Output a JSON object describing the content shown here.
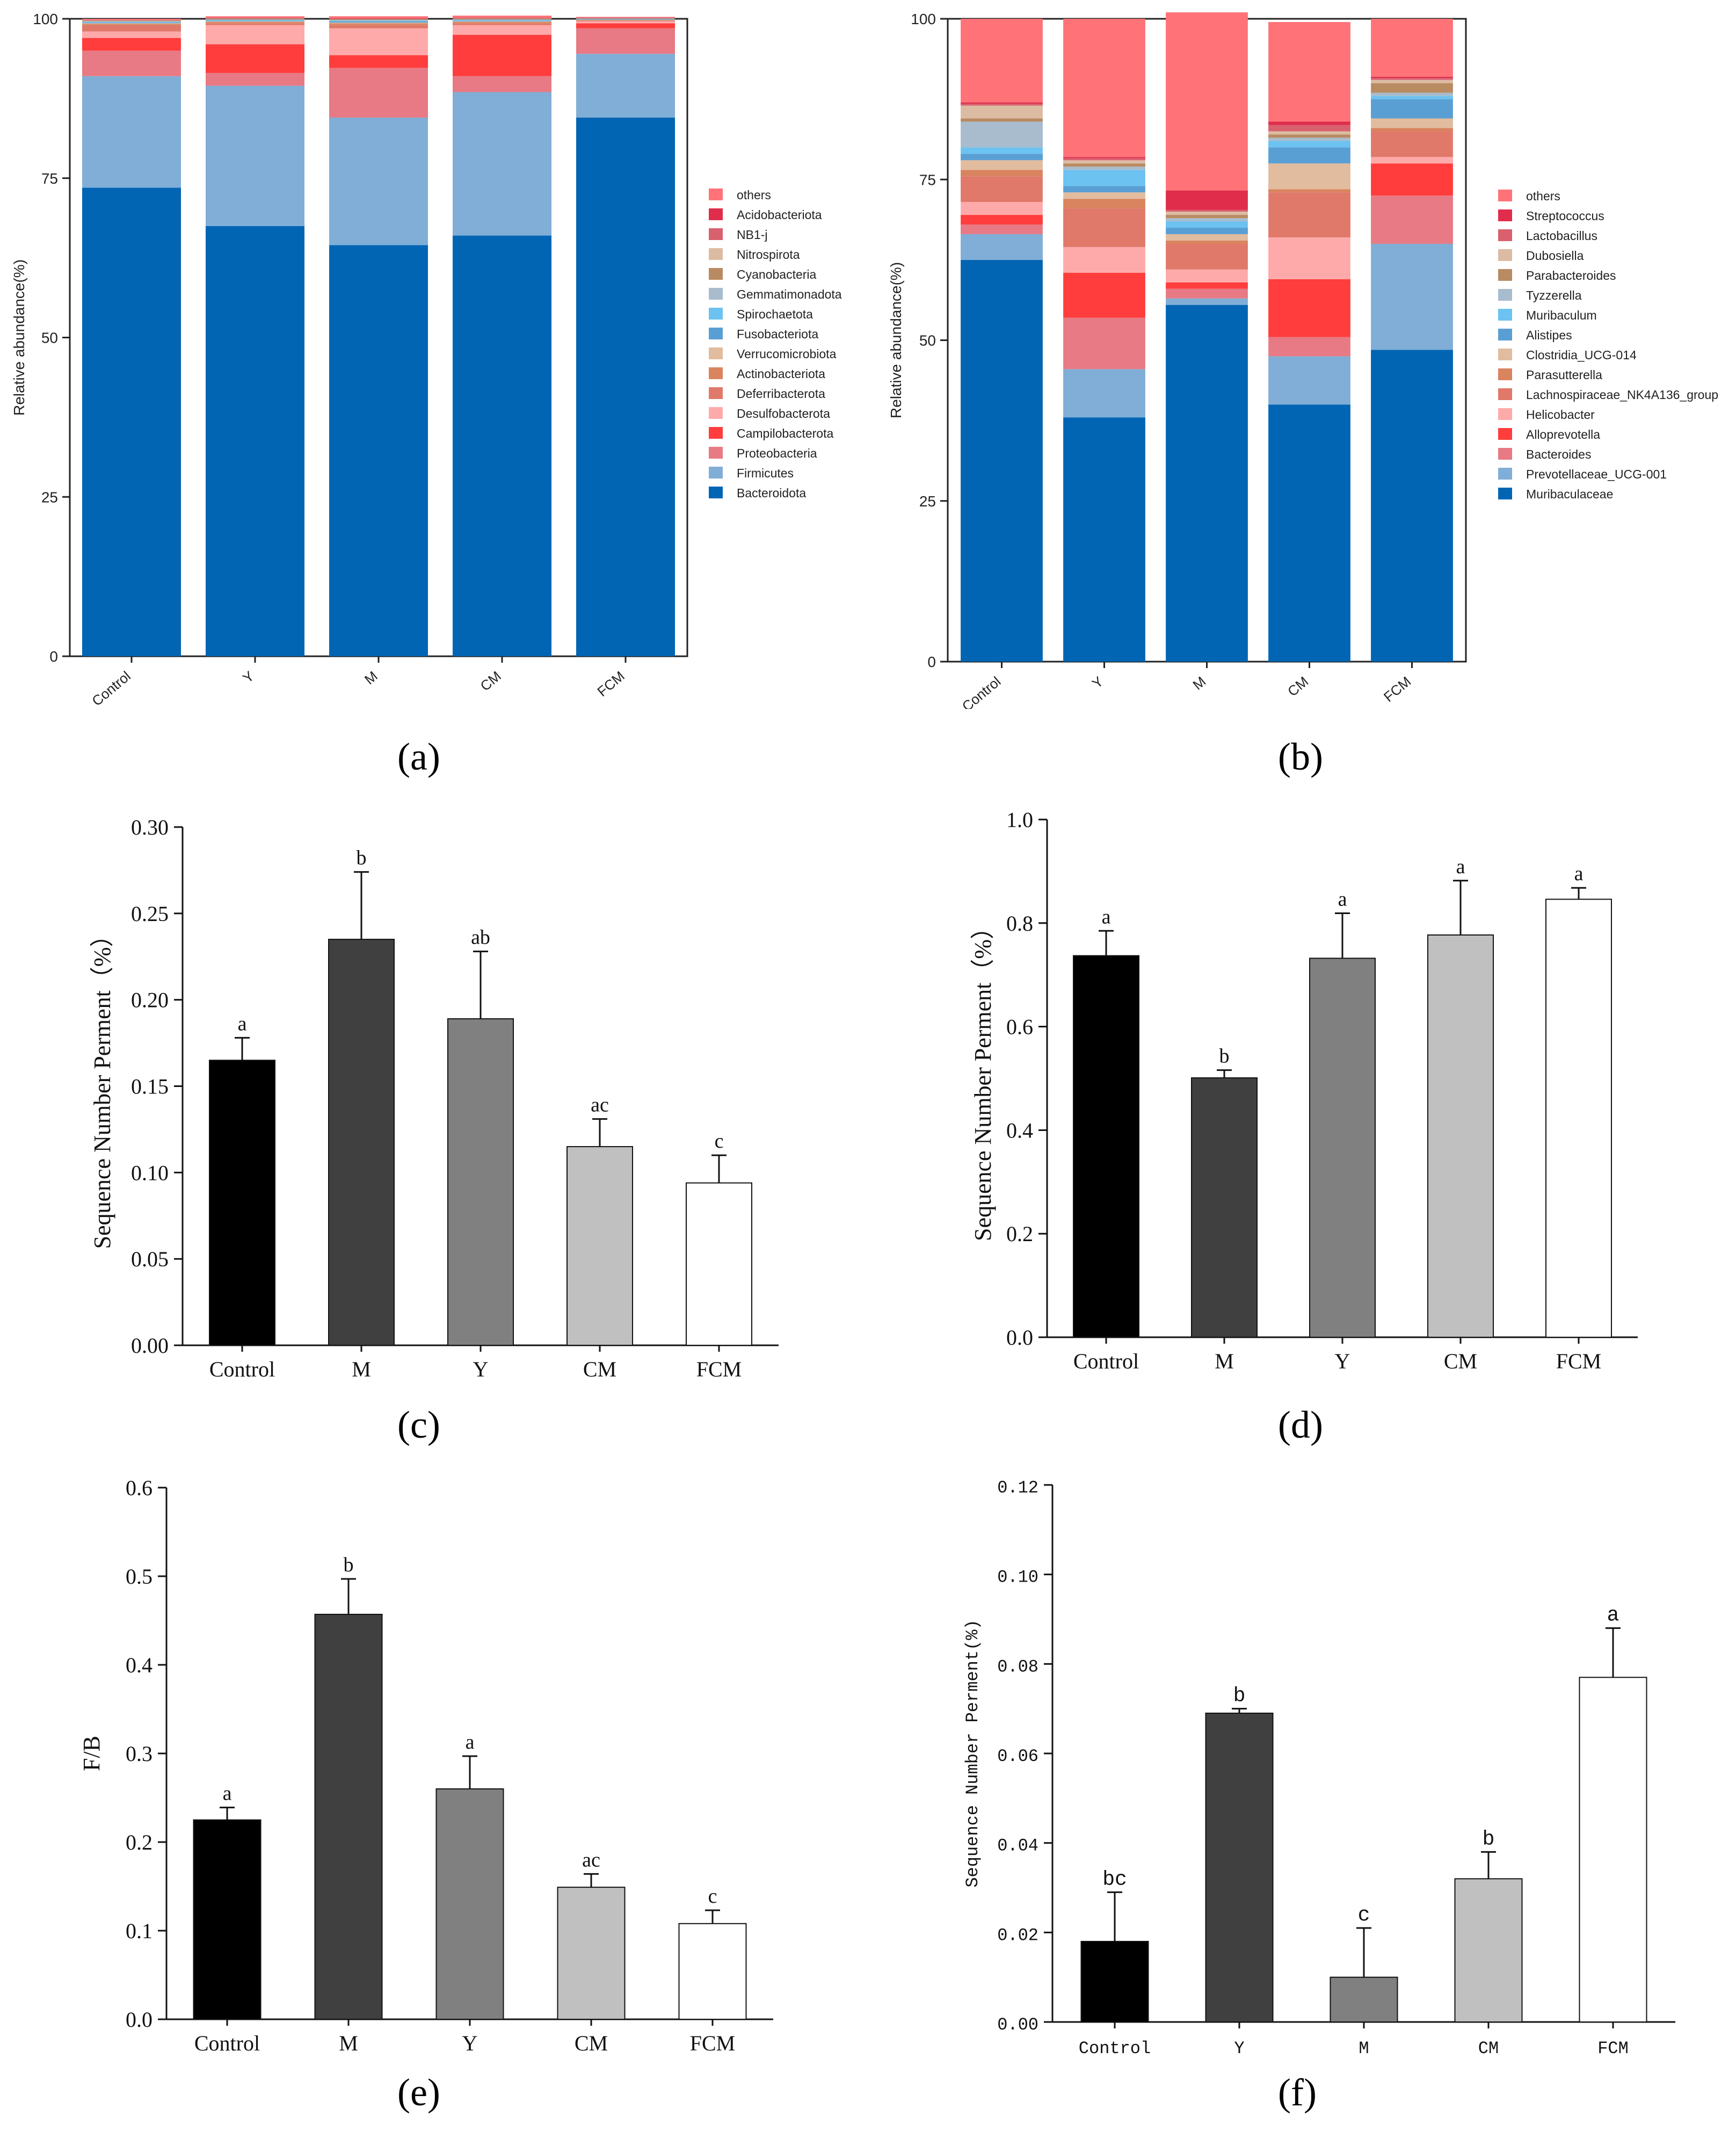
{
  "figure": {
    "panel_labels": [
      "(a)",
      "(b)",
      "(c)",
      "(d)",
      "(e)",
      "(f)"
    ]
  },
  "chart_data": [
    {
      "id": "a",
      "type": "stacked-bar",
      "ylabel": "Relative abundance(%)",
      "ylim": [
        0,
        100
      ],
      "yticks": [
        0,
        25,
        50,
        75,
        100
      ],
      "categories": [
        "Control",
        "Y",
        "M",
        "CM",
        "FCM"
      ],
      "legend_position": "right",
      "series": [
        {
          "name": "Bacteroidota",
          "color": "#0265b4",
          "values": [
            73.5,
            67.5,
            64.5,
            66.0,
            84.5
          ]
        },
        {
          "name": "Firmicutes",
          "color": "#80aed6",
          "values": [
            17.5,
            22.0,
            20.0,
            22.5,
            10.0
          ]
        },
        {
          "name": "Proteobacteria",
          "color": "#e77a84",
          "values": [
            4.0,
            2.0,
            7.8,
            2.5,
            4.0
          ]
        },
        {
          "name": "Campilobacterota",
          "color": "#ff3d3d",
          "values": [
            2.0,
            4.5,
            2.0,
            6.5,
            0.8
          ]
        },
        {
          "name": "Desulfobacterota",
          "color": "#ffaaaa",
          "values": [
            1.0,
            3.0,
            4.2,
            1.5,
            0.3
          ]
        },
        {
          "name": "Deferribacterota",
          "color": "#e0796a",
          "values": [
            1.0,
            0.3,
            0.5,
            0.3,
            0.1
          ]
        },
        {
          "name": "Actinobacteriota",
          "color": "#d9845f",
          "values": [
            0.2,
            0.2,
            0.3,
            0.2,
            0.1
          ]
        },
        {
          "name": "Verrucomicrobiota",
          "color": "#e2bc9e",
          "values": [
            0.1,
            0.1,
            0.1,
            0.1,
            0.05
          ]
        },
        {
          "name": "Fusobacteriota",
          "color": "#5a9fd4",
          "values": [
            0.1,
            0.1,
            0.2,
            0.1,
            0.05
          ]
        },
        {
          "name": "Spirochaetota",
          "color": "#6cc2f0",
          "values": [
            0.1,
            0.1,
            0.1,
            0.1,
            0.05
          ]
        },
        {
          "name": "Gemmatimonadota",
          "color": "#a8bccd",
          "values": [
            0.1,
            0.1,
            0.1,
            0.1,
            0.05
          ]
        },
        {
          "name": "Cyanobacteria",
          "color": "#b98b62",
          "values": [
            0.1,
            0.1,
            0.1,
            0.1,
            0.05
          ]
        },
        {
          "name": "Nitrospirota",
          "color": "#dcbba3",
          "values": [
            0.05,
            0.05,
            0.05,
            0.05,
            0.05
          ]
        },
        {
          "name": "NB1-j",
          "color": "#d9606e",
          "values": [
            0.05,
            0.05,
            0.05,
            0.05,
            0.05
          ]
        },
        {
          "name": "Acidobacteriota",
          "color": "#e02d4c",
          "values": [
            0.05,
            0.05,
            0.05,
            0.05,
            0.05
          ]
        },
        {
          "name": "others",
          "color": "#ff7378",
          "values": [
            0.15,
            0.25,
            0.35,
            0.35,
            0.1
          ]
        }
      ]
    },
    {
      "id": "b",
      "type": "stacked-bar",
      "ylabel": "Relative abundance(%)",
      "ylim": [
        0,
        100
      ],
      "yticks": [
        0,
        25,
        50,
        75,
        100
      ],
      "categories": [
        "Control",
        "Y",
        "M",
        "CM",
        "FCM"
      ],
      "legend_position": "right",
      "series": [
        {
          "name": "Muribaculaceae",
          "color": "#0265b4",
          "values": [
            62.5,
            38.0,
            55.5,
            40.0,
            48.5
          ]
        },
        {
          "name": "Prevotellaceae_UCG-001",
          "color": "#80aed6",
          "values": [
            4.0,
            7.5,
            1.0,
            7.5,
            16.5
          ]
        },
        {
          "name": "Bacteroides",
          "color": "#e77a84",
          "values": [
            1.5,
            8.0,
            1.5,
            3.0,
            7.5
          ]
        },
        {
          "name": "Alloprevotella",
          "color": "#ff3d3d",
          "values": [
            1.5,
            7.0,
            1.0,
            9.0,
            5.0
          ]
        },
        {
          "name": "Helicobacter",
          "color": "#ffaaaa",
          "values": [
            2.0,
            4.0,
            2.0,
            6.5,
            1.0
          ]
        },
        {
          "name": "Lachnospiraceae_NK4A136_group",
          "color": "#e0796a",
          "values": [
            4.0,
            6.0,
            4.0,
            7.0,
            4.0
          ]
        },
        {
          "name": "Parasutterella",
          "color": "#d9845f",
          "values": [
            1.0,
            1.5,
            0.5,
            0.5,
            0.5
          ]
        },
        {
          "name": "Clostridia_UCG-014",
          "color": "#e2bc9e",
          "values": [
            1.5,
            1.0,
            1.0,
            4.0,
            1.5
          ]
        },
        {
          "name": "Alistipes",
          "color": "#5a9fd4",
          "values": [
            1.0,
            1.0,
            1.0,
            2.5,
            3.0
          ]
        },
        {
          "name": "Muribaculum",
          "color": "#6cc2f0",
          "values": [
            1.0,
            2.5,
            1.0,
            1.0,
            0.5
          ]
        },
        {
          "name": "Tyzzerella",
          "color": "#a8bccd",
          "values": [
            4.0,
            0.5,
            0.5,
            0.5,
            0.5
          ]
        },
        {
          "name": "Parabacteroides",
          "color": "#b98b62",
          "values": [
            0.5,
            0.5,
            0.5,
            0.5,
            1.5
          ]
        },
        {
          "name": "Dubosiella",
          "color": "#dcbba3",
          "values": [
            2.0,
            0.5,
            0.5,
            0.5,
            0.5
          ]
        },
        {
          "name": "Lactobacillus",
          "color": "#d9606e",
          "values": [
            0.3,
            0.3,
            0.3,
            1.0,
            0.3
          ]
        },
        {
          "name": "Streptococcus",
          "color": "#e02d4c",
          "values": [
            0.2,
            0.2,
            3.0,
            0.5,
            0.2
          ]
        },
        {
          "name": "others",
          "color": "#ff7378",
          "values": [
            13.0,
            21.5,
            27.7,
            15.5,
            9.0
          ]
        }
      ]
    },
    {
      "id": "c",
      "type": "bar",
      "font": "serif",
      "ylabel": "Sequence Number Perment（%）",
      "ylim": [
        0,
        0.3
      ],
      "yticks": [
        "0.00",
        "0.05",
        "0.10",
        "0.15",
        "0.20",
        "0.25",
        "0.30"
      ],
      "categories": [
        "Control",
        "M",
        "Y",
        "CM",
        "FCM"
      ],
      "values": [
        0.165,
        0.235,
        0.189,
        0.115,
        0.094
      ],
      "errors": [
        0.013,
        0.039,
        0.039,
        0.016,
        0.016
      ],
      "letters": [
        "a",
        "b",
        "ab",
        "ac",
        "c"
      ],
      "colors": [
        "#000000",
        "#404040",
        "#808080",
        "#c0c0c0",
        "#ffffff"
      ]
    },
    {
      "id": "d",
      "type": "bar",
      "font": "serif",
      "ylabel": "Sequence Number Perment（%）",
      "ylim": [
        0,
        1.0
      ],
      "yticks": [
        "0.0",
        "0.2",
        "0.4",
        "0.6",
        "0.8",
        "1.0"
      ],
      "categories": [
        "Control",
        "M",
        "Y",
        "CM",
        "FCM"
      ],
      "values": [
        0.737,
        0.501,
        0.732,
        0.777,
        0.846
      ],
      "errors": [
        0.048,
        0.015,
        0.087,
        0.105,
        0.022
      ],
      "letters": [
        "a",
        "b",
        "a",
        "a",
        "a"
      ],
      "colors": [
        "#000000",
        "#404040",
        "#808080",
        "#c0c0c0",
        "#ffffff"
      ]
    },
    {
      "id": "e",
      "type": "bar",
      "font": "serif",
      "ylabel": "F/B",
      "ylim": [
        0,
        0.6
      ],
      "yticks": [
        "0.0",
        "0.1",
        "0.2",
        "0.3",
        "0.4",
        "0.5",
        "0.6"
      ],
      "categories": [
        "Control",
        "M",
        "Y",
        "CM",
        "FCM"
      ],
      "values": [
        0.225,
        0.457,
        0.26,
        0.149,
        0.108
      ],
      "errors": [
        0.014,
        0.04,
        0.037,
        0.015,
        0.015
      ],
      "letters": [
        "a",
        "b",
        "a",
        "ac",
        "c"
      ],
      "colors": [
        "#000000",
        "#404040",
        "#808080",
        "#c0c0c0",
        "#ffffff"
      ]
    },
    {
      "id": "f",
      "type": "bar",
      "font": "mono",
      "ylabel": "Sequence Number Perment(%)",
      "ylim": [
        0,
        0.12
      ],
      "yticks": [
        "0.00",
        "0.02",
        "0.04",
        "0.06",
        "0.08",
        "0.10",
        "0.12"
      ],
      "categories": [
        "Control",
        "Y",
        "M",
        "CM",
        "FCM"
      ],
      "values": [
        0.018,
        0.069,
        0.01,
        0.032,
        0.077
      ],
      "errors": [
        0.011,
        0.001,
        0.011,
        0.006,
        0.011
      ],
      "letters": [
        "bc",
        "b",
        "c",
        "b",
        "a"
      ],
      "colors": [
        "#000000",
        "#404040",
        "#808080",
        "#c0c0c0",
        "#ffffff"
      ]
    }
  ]
}
